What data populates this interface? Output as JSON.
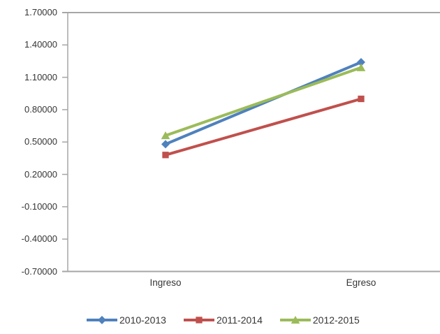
{
  "chart_data": {
    "type": "line",
    "title": "",
    "xlabel": "",
    "ylabel": "",
    "categories": [
      "Ingreso",
      "Egreso"
    ],
    "series": [
      {
        "name": "2010-2013",
        "values": [
          0.48,
          1.24
        ],
        "color": "#4F81BD",
        "marker": "diamond"
      },
      {
        "name": "2011-2014",
        "values": [
          0.38,
          0.9
        ],
        "color": "#C0504D",
        "marker": "square"
      },
      {
        "name": "2012-2015",
        "values": [
          0.56,
          1.19
        ],
        "color": "#9BBB59",
        "marker": "triangle"
      }
    ],
    "ylim": [
      -0.7,
      1.7
    ],
    "ytick_step": 0.3,
    "ytick_labels": [
      "1.70000",
      "1.40000",
      "1.10000",
      "0.80000",
      "0.50000",
      "0.20000",
      "-0.10000",
      "-0.40000",
      "-0.70000"
    ],
    "ytick_values": [
      1.7,
      1.4,
      1.1,
      0.8,
      0.5,
      0.2,
      -0.1,
      -0.4,
      -0.7
    ],
    "grid": "top-border-and-x-axis-only",
    "legend_position": "bottom-center"
  },
  "colors": {
    "axis_line": "#A6A6A6",
    "tick_mark": "#A6A6A6",
    "label_text": "#353535",
    "background": "#FFFFFF"
  }
}
